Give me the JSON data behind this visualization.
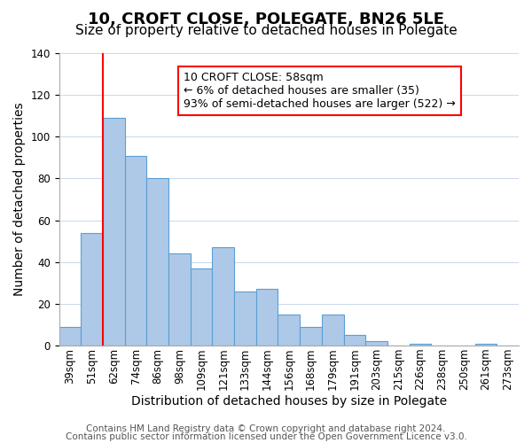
{
  "title": "10, CROFT CLOSE, POLEGATE, BN26 5LE",
  "subtitle": "Size of property relative to detached houses in Polegate",
  "xlabel": "Distribution of detached houses by size in Polegate",
  "ylabel": "Number of detached properties",
  "footer1": "Contains HM Land Registry data © Crown copyright and database right 2024.",
  "footer2": "Contains public sector information licensed under the Open Government Licence v3.0.",
  "bar_labels": [
    "39sqm",
    "51sqm",
    "62sqm",
    "74sqm",
    "86sqm",
    "98sqm",
    "109sqm",
    "121sqm",
    "133sqm",
    "144sqm",
    "156sqm",
    "168sqm",
    "179sqm",
    "191sqm",
    "203sqm",
    "215sqm",
    "226sqm",
    "238sqm",
    "250sqm",
    "261sqm",
    "273sqm"
  ],
  "bar_values": [
    9,
    54,
    109,
    91,
    80,
    44,
    37,
    47,
    26,
    27,
    15,
    9,
    15,
    5,
    2,
    0,
    1,
    0,
    0,
    1,
    0
  ],
  "bar_color": "#aec9e8",
  "bar_edge_color": "#5a9fd4",
  "ylim": [
    0,
    140
  ],
  "yticks": [
    0,
    20,
    40,
    60,
    80,
    100,
    120,
    140
  ],
  "vline_color": "red",
  "vline_x": 1.5,
  "annotation_title": "10 CROFT CLOSE: 58sqm",
  "annotation_line1": "← 6% of detached houses are smaller (35)",
  "annotation_line2": "93% of semi-detached houses are larger (522) →",
  "annotation_box_color": "#ffffff",
  "annotation_box_edge": "red",
  "title_fontsize": 13,
  "subtitle_fontsize": 11,
  "axis_label_fontsize": 10,
  "tick_fontsize": 8.5,
  "annotation_fontsize": 9,
  "footer_fontsize": 7.5
}
